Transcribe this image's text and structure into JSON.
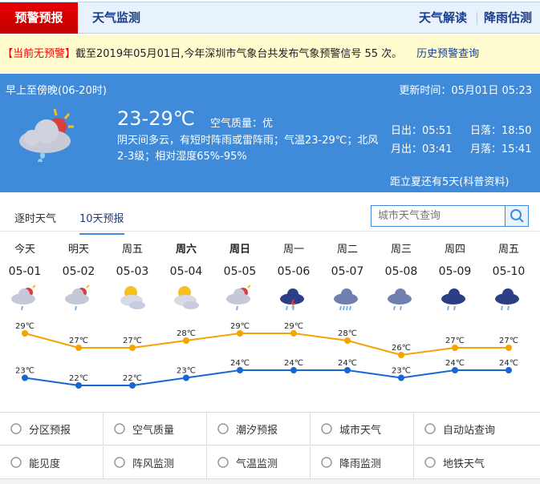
{
  "header": {
    "active_tab": "预警预报",
    "tab2": "天气监测",
    "right_links": [
      "天气解读",
      "降雨估测"
    ]
  },
  "alert": {
    "status": "【当前无预警】",
    "text": "截至2019年05月01日,今年深圳市气象台共发布气象预警信号 55 次。",
    "history_link": "历史预警查询"
  },
  "today": {
    "period": "早上至傍晚(06-20时)",
    "updated": "更新时间：05月01日 05:23",
    "temp": "23-29℃",
    "air_label": "空气质量：",
    "air_value": "优",
    "description": "阴天间多云，有短时阵雨或雷阵雨；气温23-29℃；北风2-3级；相对湿度65%-95%",
    "sunrise": "日出：05:51",
    "sunset": "日落：18:50",
    "moonrise": "月出：03:41",
    "moonset": "月落：15:41",
    "solar_term": "距立夏还有5天(科普资料)",
    "icon": "cloudy-sun-rain-icon"
  },
  "forecast_tabs": [
    "逐时天气",
    "10天预报"
  ],
  "search": {
    "placeholder": "城市天气查询"
  },
  "chart_data": {
    "type": "line",
    "categories": [
      "05-01",
      "05-02",
      "05-03",
      "05-04",
      "05-05",
      "05-06",
      "05-07",
      "05-08",
      "05-09",
      "05-10"
    ],
    "weekdays": [
      "今天",
      "明天",
      "周五",
      "周六",
      "周日",
      "周一",
      "周二",
      "周三",
      "周四",
      "周五"
    ],
    "icons": [
      "cloud-sun-rain",
      "cloud-sun-rain",
      "sun-cloud",
      "sun-cloud",
      "cloud-sun-rain",
      "thunderstorm",
      "heavy-rain",
      "moderate-rain",
      "light-rain",
      "light-rain"
    ],
    "series": [
      {
        "values": [
          29,
          27,
          27,
          28,
          29,
          29,
          28,
          26,
          27,
          27
        ],
        "color": "#f5a300"
      },
      {
        "values": [
          23,
          22,
          22,
          23,
          24,
          24,
          24,
          23,
          24,
          24
        ],
        "color": "#1668d0"
      }
    ],
    "unit": "℃"
  },
  "links": [
    [
      "分区预报",
      "空气质量",
      "潮汐预报",
      "城市天气",
      "自动站查询"
    ],
    [
      "能见度",
      "阵风监测",
      "气温监测",
      "降雨监测",
      "地铁天气"
    ]
  ]
}
